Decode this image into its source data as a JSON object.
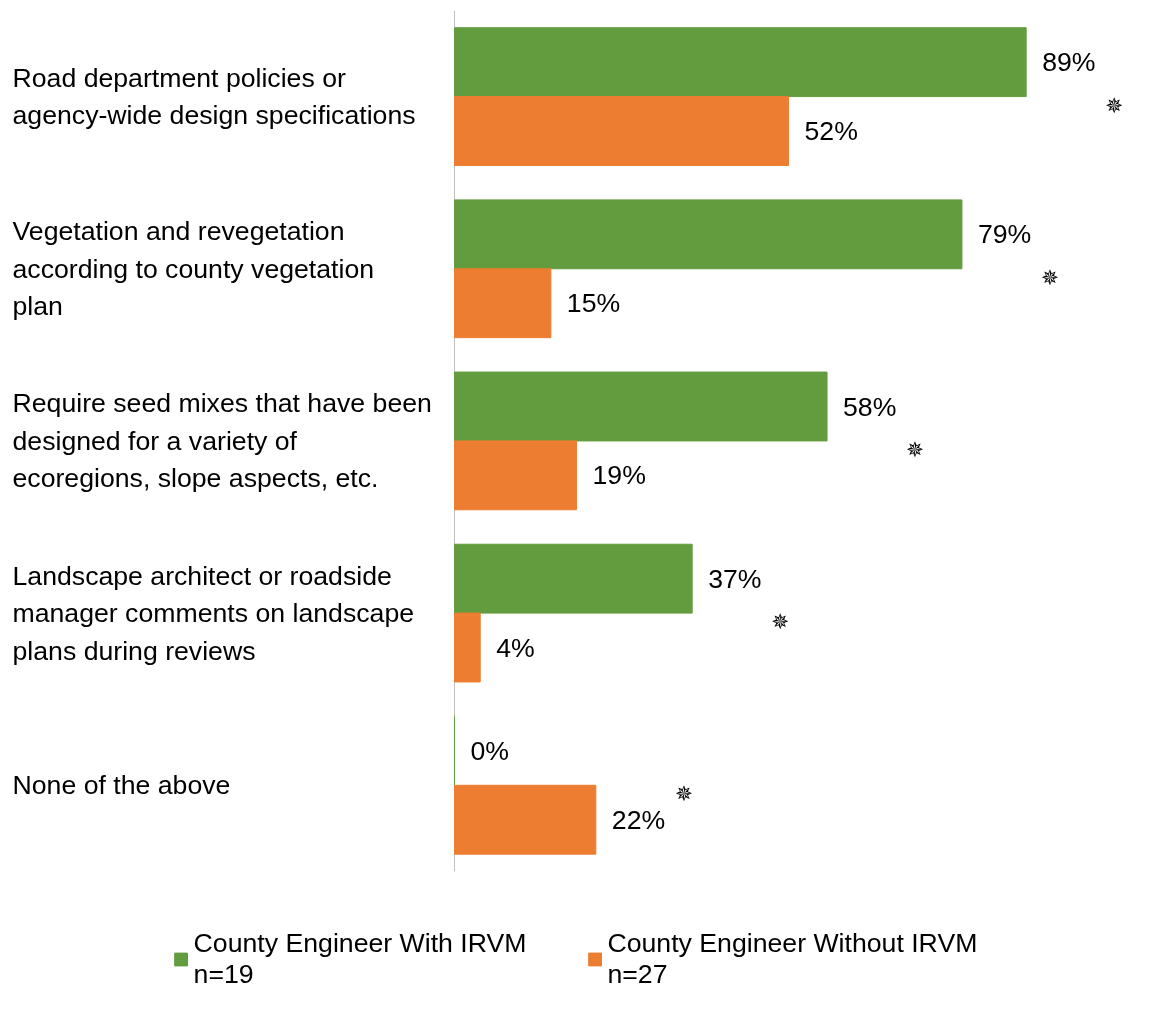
{
  "chart_data": {
    "type": "bar",
    "orientation": "horizontal",
    "categories": [
      "Road department policies or agency-wide design specifications",
      "Vegetation and revegetation according to county vegetation plan",
      "Require seed mixes that have been designed for a variety of ecoregions, slope aspects, etc.",
      "Landscape architect or roadside manager comments on landscape plans during reviews",
      "None of the above"
    ],
    "series": [
      {
        "name": "County Engineer With IRVM\nn=19",
        "color": "#639c3f",
        "values": [
          89,
          79,
          58,
          37,
          0
        ],
        "value_labels": [
          "89%",
          "79%",
          "58%",
          "37%",
          "0%"
        ]
      },
      {
        "name": "County Engineer Without IRVM\nn=27",
        "color": "#ed7d31",
        "values": [
          52,
          15,
          19,
          4,
          22
        ],
        "value_labels": [
          "52%",
          "15%",
          "19%",
          "4%",
          "22%"
        ]
      }
    ],
    "tick_labels": "y",
    "grid": false,
    "legend": "bottom",
    "annotations": [
      "✵",
      "✵",
      "✵",
      "✵",
      "✵"
    ]
  }
}
